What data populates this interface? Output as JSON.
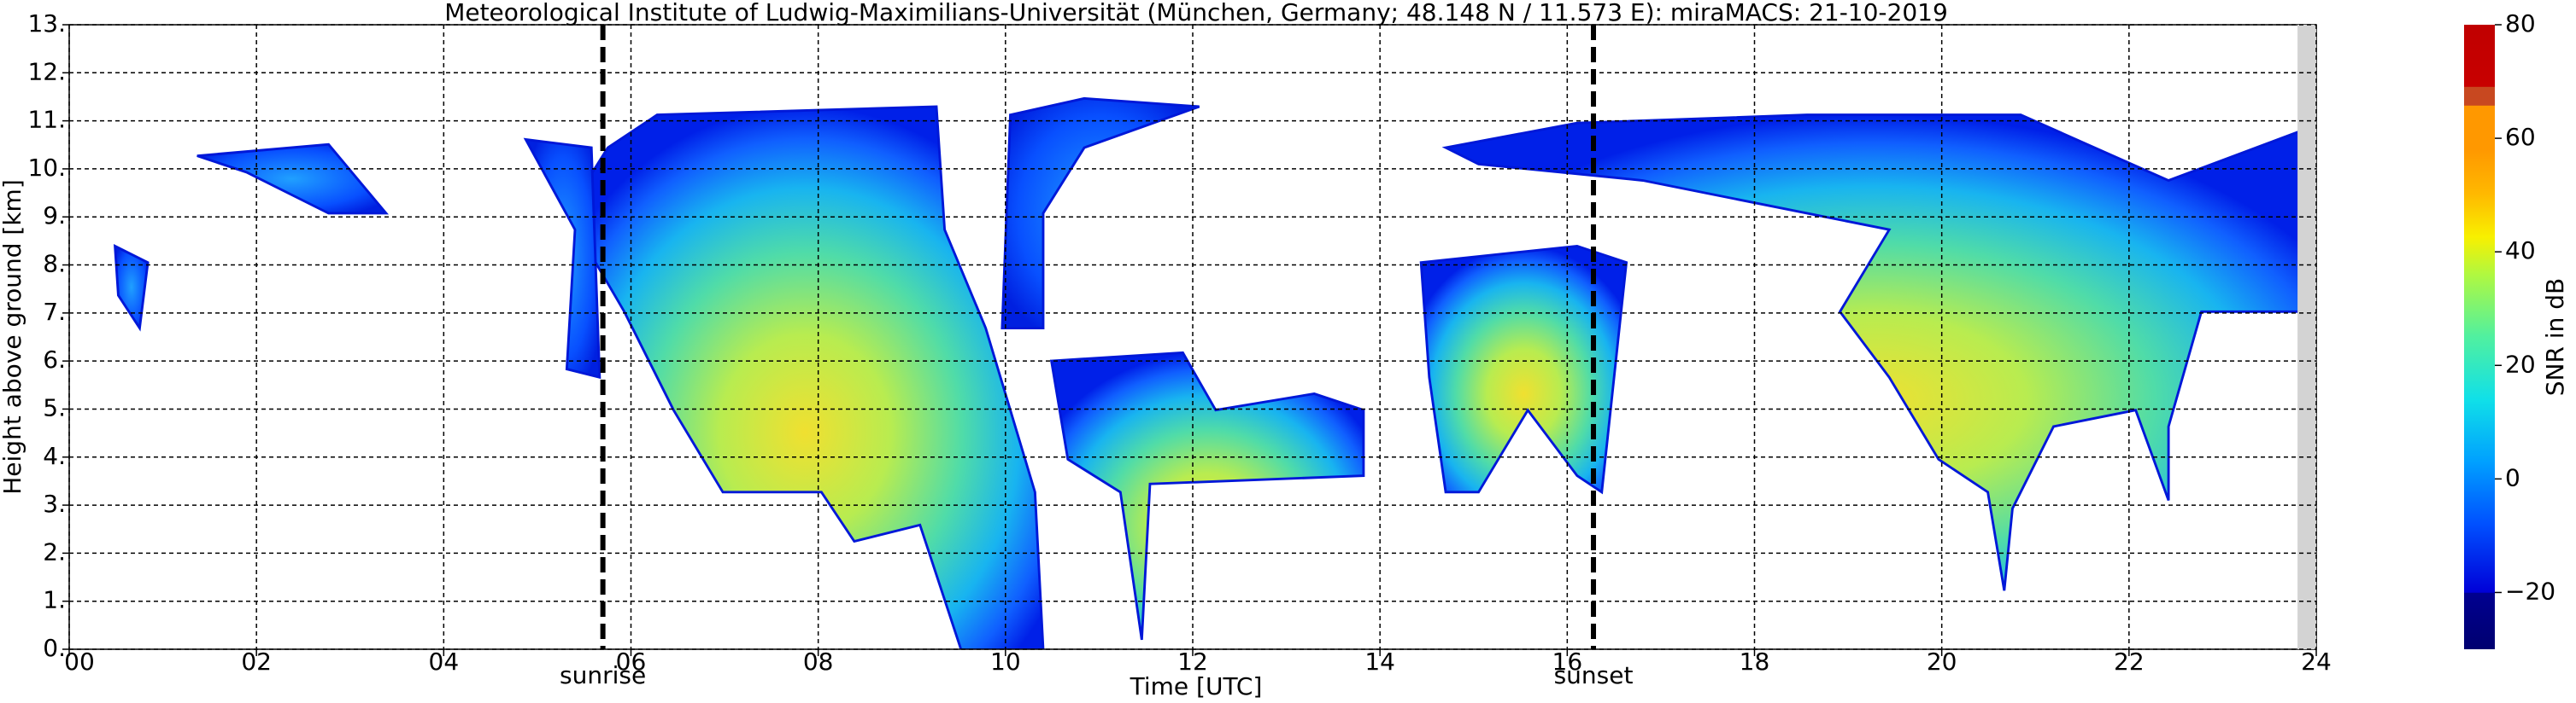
{
  "chart_data": {
    "type": "heatmap",
    "title": "Meteorological Institute of Ludwig-Maximilians-Universität (München, Germany; 48.148 N / 11.573 E):    miraMACS: 21-10-2019",
    "xlabel": "Time [UTC]",
    "ylabel": "Height above ground [km]",
    "xlim": [
      0,
      24
    ],
    "xticks": [
      {
        "value": 0,
        "label": "00"
      },
      {
        "value": 2,
        "label": "02"
      },
      {
        "value": 4,
        "label": "04"
      },
      {
        "value": 6,
        "label": "06"
      },
      {
        "value": 8,
        "label": "08"
      },
      {
        "value": 10,
        "label": "10"
      },
      {
        "value": 12,
        "label": "12"
      },
      {
        "value": 14,
        "label": "14"
      },
      {
        "value": 16,
        "label": "16"
      },
      {
        "value": 18,
        "label": "18"
      },
      {
        "value": 20,
        "label": "20"
      },
      {
        "value": 22,
        "label": "22"
      },
      {
        "value": 24,
        "label": "24"
      }
    ],
    "ylim": [
      0,
      13
    ],
    "yticks": [
      {
        "value": 0,
        "label": "0."
      },
      {
        "value": 1,
        "label": "1."
      },
      {
        "value": 2,
        "label": "2."
      },
      {
        "value": 3,
        "label": "3."
      },
      {
        "value": 4,
        "label": "4."
      },
      {
        "value": 5,
        "label": "5."
      },
      {
        "value": 6,
        "label": "6."
      },
      {
        "value": 7,
        "label": "7."
      },
      {
        "value": 8,
        "label": "8."
      },
      {
        "value": 9,
        "label": "9."
      },
      {
        "value": 10,
        "label": "10."
      },
      {
        "value": 11,
        "label": "11."
      },
      {
        "value": 12,
        "label": "12."
      },
      {
        "value": 13,
        "label": "13."
      }
    ],
    "grid": true,
    "markers": [
      {
        "label": "sunrise",
        "x": 5.7
      },
      {
        "label": "sunset",
        "x": 16.28
      }
    ],
    "missing_data": [
      23.8,
      24
    ],
    "colorbar": {
      "label": "SNR in dB",
      "clim": [
        -30,
        80
      ],
      "ticks": [
        {
          "value": -20,
          "label": "−20"
        },
        0,
        20,
        40,
        60,
        80
      ]
    }
  }
}
